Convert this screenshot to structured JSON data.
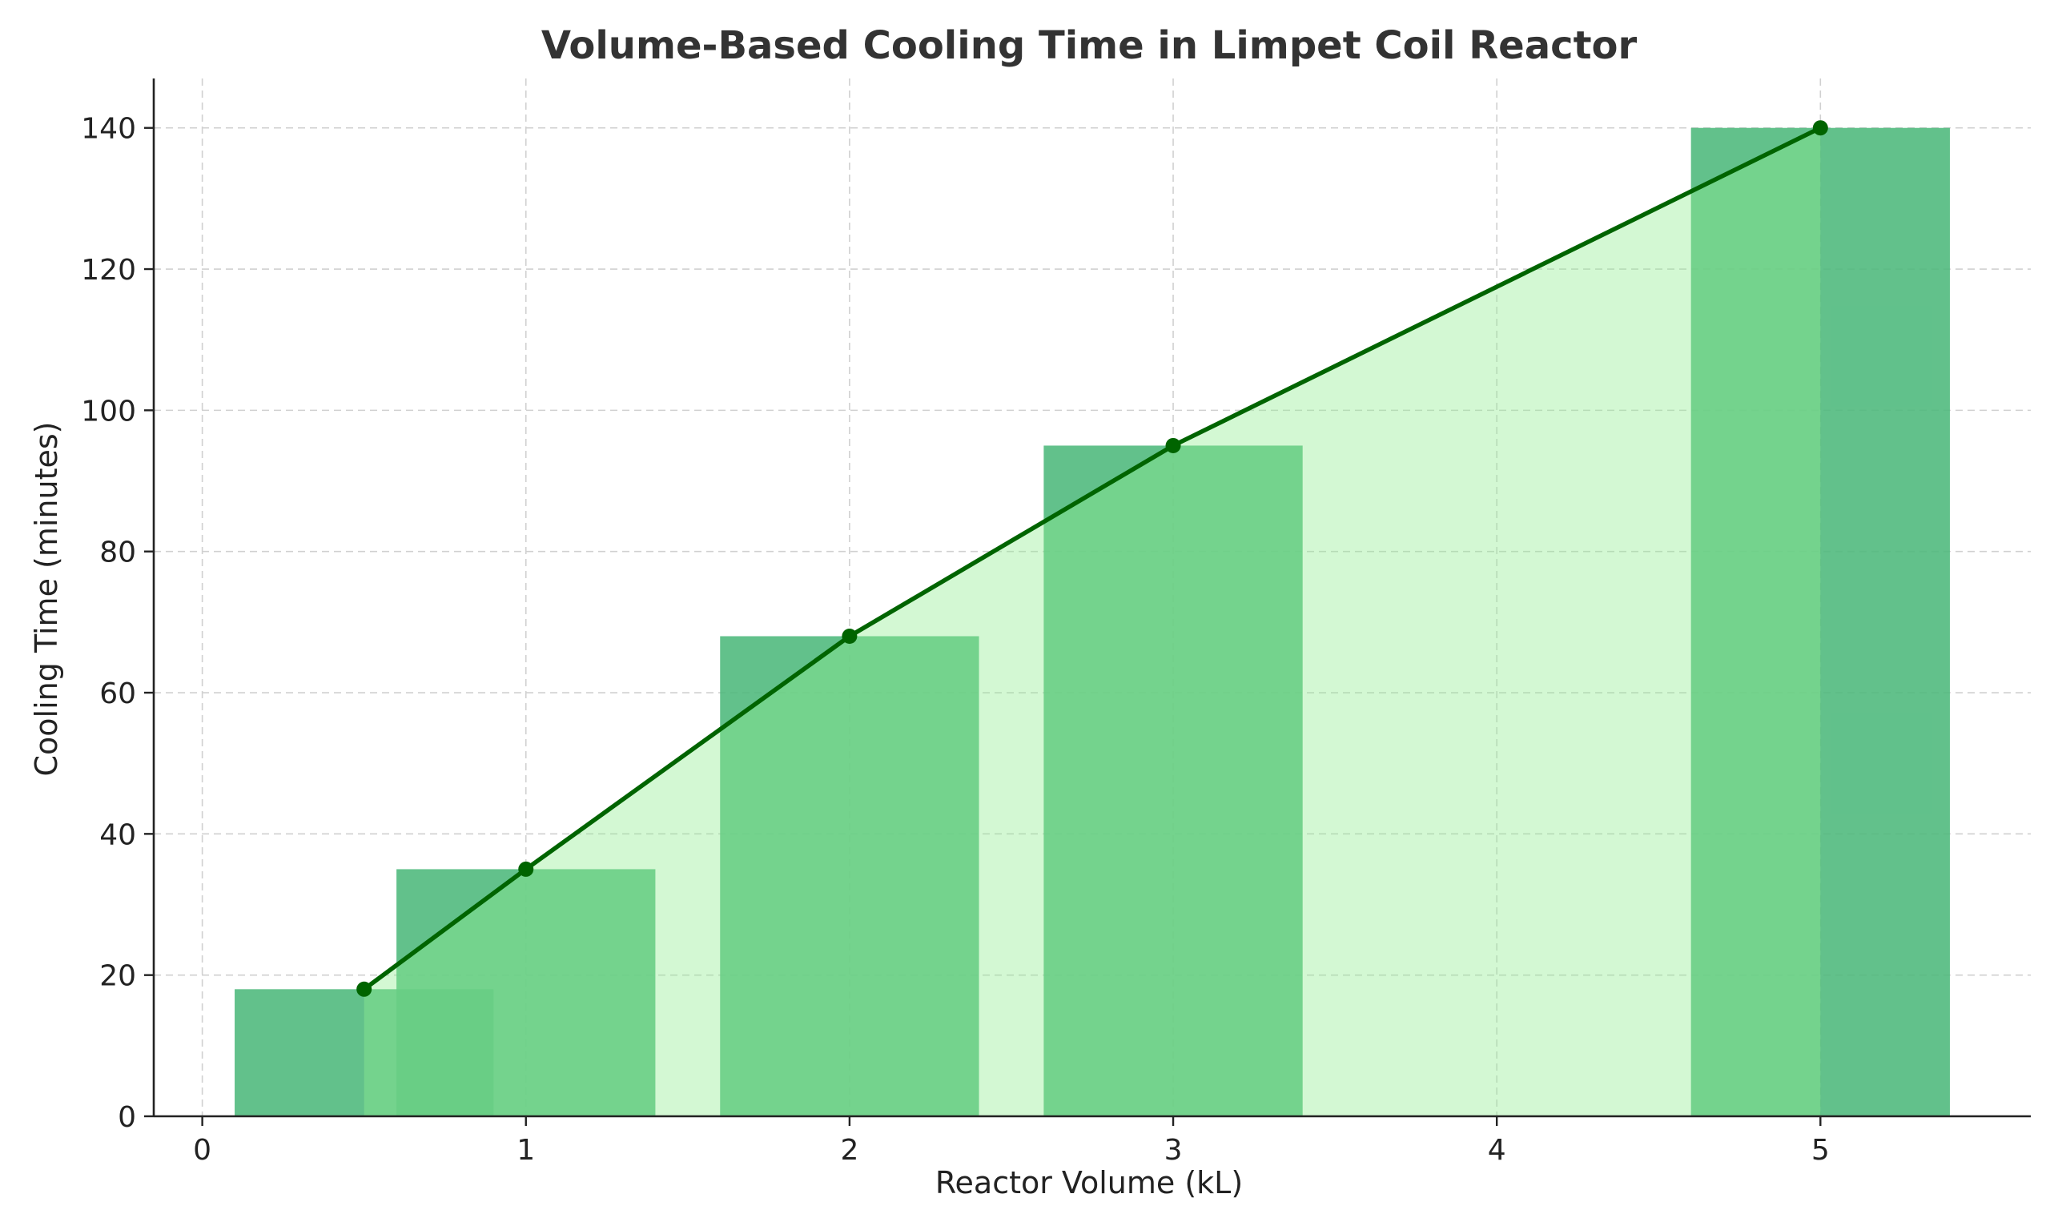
{
  "chart_data": {
    "type": "bar",
    "title": "Volume-Based Cooling Time in Limpet Coil Reactor",
    "xlabel": "Reactor Volume (kL)",
    "ylabel": "Cooling Time (minutes)",
    "x": [
      0.5,
      1,
      2,
      3,
      5
    ],
    "values": [
      18,
      35,
      68,
      95,
      140
    ],
    "bar_width": 0.8,
    "xlim": [
      -0.15,
      5.65
    ],
    "ylim": [
      0,
      147
    ],
    "xticks": [
      0,
      1,
      2,
      3,
      4,
      5
    ],
    "yticks": [
      0,
      20,
      40,
      60,
      80,
      100,
      120,
      140
    ],
    "grid": true,
    "overlays": [
      {
        "type": "bar",
        "x": [
          0.5,
          1,
          2,
          3,
          5
        ],
        "values": [
          18,
          35,
          68,
          95,
          140
        ],
        "bar_width": 0.8,
        "color": "#4cb87b",
        "opacity": 0.88
      },
      {
        "type": "area",
        "x": [
          0.5,
          1,
          2,
          3,
          5
        ],
        "values": [
          18,
          35,
          68,
          95,
          140
        ],
        "color": "#90ee90",
        "opacity": 0.4
      },
      {
        "type": "line",
        "x": [
          0.5,
          1,
          2,
          3,
          5
        ],
        "values": [
          18,
          35,
          68,
          95,
          140
        ],
        "color": "#006400",
        "markers": true
      }
    ]
  }
}
